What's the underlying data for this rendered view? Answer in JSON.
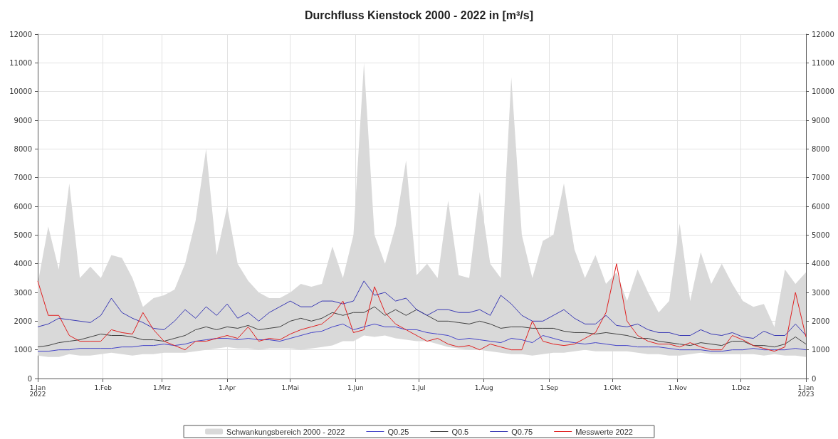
{
  "chart_data": {
    "type": "line",
    "title": "Durchfluss Kienstock 2000 - 2022 in [m³/s]",
    "x": [
      "2022-01-01",
      "2022-01-06",
      "2022-01-11",
      "2022-01-16",
      "2022-01-21",
      "2022-01-26",
      "2022-01-31",
      "2022-02-05",
      "2022-02-10",
      "2022-02-15",
      "2022-02-20",
      "2022-02-25",
      "2022-03-02",
      "2022-03-07",
      "2022-03-12",
      "2022-03-17",
      "2022-03-22",
      "2022-03-27",
      "2022-04-01",
      "2022-04-06",
      "2022-04-11",
      "2022-04-16",
      "2022-04-21",
      "2022-04-26",
      "2022-05-01",
      "2022-05-06",
      "2022-05-11",
      "2022-05-16",
      "2022-05-21",
      "2022-05-26",
      "2022-05-31",
      "2022-06-05",
      "2022-06-10",
      "2022-06-15",
      "2022-06-20",
      "2022-06-25",
      "2022-06-30",
      "2022-07-05",
      "2022-07-10",
      "2022-07-15",
      "2022-07-20",
      "2022-07-25",
      "2022-07-30",
      "2022-08-04",
      "2022-08-09",
      "2022-08-14",
      "2022-08-19",
      "2022-08-24",
      "2022-08-29",
      "2022-09-03",
      "2022-09-08",
      "2022-09-13",
      "2022-09-18",
      "2022-09-23",
      "2022-09-28",
      "2022-10-03",
      "2022-10-08",
      "2022-10-13",
      "2022-10-18",
      "2022-10-23",
      "2022-10-28",
      "2022-11-02",
      "2022-11-07",
      "2022-11-12",
      "2022-11-17",
      "2022-11-22",
      "2022-11-27",
      "2022-12-02",
      "2022-12-07",
      "2022-12-12",
      "2022-12-17",
      "2022-12-22",
      "2022-12-27",
      "2023-01-01"
    ],
    "series": [
      {
        "name": "Schwankungsbereich 2000 - 2022",
        "type": "area",
        "color": "#d9d9d9",
        "values": [
          null,
          null,
          null,
          null,
          null,
          null,
          null,
          null,
          null,
          null,
          null,
          null,
          null,
          null,
          null,
          null,
          null,
          null,
          null,
          null,
          null,
          null,
          null,
          null,
          null,
          null,
          null,
          null,
          null,
          null,
          null,
          null,
          null,
          null,
          null,
          null,
          null,
          null,
          null,
          null,
          null,
          null,
          null,
          null,
          null,
          null,
          null,
          null,
          null,
          null,
          null,
          null,
          null,
          null,
          null,
          null,
          null,
          null,
          null,
          null,
          null,
          null,
          null,
          null,
          null,
          null,
          null,
          null,
          null,
          null,
          null,
          null,
          null,
          null
        ],
        "upper": [
          3300,
          5300,
          3800,
          6800,
          3500,
          3900,
          3500,
          4300,
          4200,
          3500,
          2500,
          2800,
          2900,
          3100,
          4000,
          5500,
          8000,
          4300,
          6000,
          4000,
          3400,
          3000,
          2800,
          2800,
          3000,
          3300,
          3200,
          3300,
          4600,
          3500,
          5000,
          11000,
          5000,
          4000,
          5300,
          7600,
          3600,
          4000,
          3500,
          6200,
          3600,
          3500,
          6500,
          4000,
          3500,
          10500,
          5000,
          3500,
          4800,
          5000,
          6800,
          4500,
          3500,
          4300,
          3300,
          3700,
          2700,
          3800,
          3000,
          2300,
          2700,
          5400,
          2700,
          4400,
          3300,
          4000,
          3300,
          2700,
          2500,
          2600,
          1800,
          3800,
          3300,
          3700
        ],
        "lower": [
          800,
          750,
          750,
          850,
          800,
          800,
          850,
          900,
          850,
          800,
          850,
          850,
          900,
          900,
          900,
          950,
          1000,
          1050,
          1100,
          1050,
          1050,
          1000,
          1050,
          1050,
          1050,
          1000,
          1050,
          1100,
          1150,
          1300,
          1300,
          1500,
          1450,
          1500,
          1400,
          1350,
          1300,
          1300,
          1200,
          1100,
          1050,
          1000,
          1000,
          950,
          900,
          850,
          850,
          800,
          850,
          900,
          900,
          950,
          1000,
          950,
          950,
          950,
          950,
          900,
          850,
          850,
          800,
          800,
          850,
          900,
          850,
          850,
          850,
          850,
          850,
          800,
          850,
          800,
          800,
          750
        ]
      },
      {
        "name": "Q0.25",
        "color": "#4444c8",
        "values": [
          950,
          950,
          1000,
          1000,
          1050,
          1050,
          1050,
          1050,
          1100,
          1100,
          1150,
          1150,
          1200,
          1150,
          1200,
          1300,
          1350,
          1400,
          1400,
          1350,
          1400,
          1350,
          1350,
          1300,
          1400,
          1500,
          1600,
          1650,
          1800,
          1900,
          1700,
          1800,
          1900,
          1800,
          1800,
          1700,
          1700,
          1600,
          1550,
          1500,
          1350,
          1400,
          1350,
          1300,
          1250,
          1400,
          1350,
          1250,
          1500,
          1400,
          1300,
          1250,
          1200,
          1250,
          1200,
          1150,
          1150,
          1100,
          1100,
          1100,
          1050,
          1000,
          1000,
          1000,
          950,
          950,
          1000,
          1000,
          1050,
          1000,
          1000,
          1000,
          1050,
          1000
        ]
      },
      {
        "name": "Q0.5",
        "color": "#404040",
        "values": [
          1100,
          1150,
          1250,
          1300,
          1350,
          1450,
          1550,
          1500,
          1500,
          1450,
          1350,
          1350,
          1300,
          1400,
          1500,
          1700,
          1800,
          1700,
          1800,
          1750,
          1850,
          1700,
          1750,
          1800,
          2000,
          2100,
          2000,
          2100,
          2300,
          2200,
          2300,
          2300,
          2500,
          2200,
          2400,
          2200,
          2400,
          2200,
          2000,
          2000,
          1950,
          1900,
          2000,
          1900,
          1750,
          1800,
          1800,
          1750,
          1750,
          1750,
          1650,
          1600,
          1600,
          1550,
          1600,
          1550,
          1500,
          1400,
          1400,
          1300,
          1250,
          1200,
          1150,
          1250,
          1200,
          1150,
          1300,
          1300,
          1150,
          1150,
          1100,
          1200,
          1450,
          1200
        ]
      },
      {
        "name": "Q0.75",
        "color": "#3a3ab4",
        "values": [
          1800,
          1900,
          2100,
          2050,
          2000,
          1950,
          2200,
          2800,
          2300,
          2100,
          1950,
          1750,
          1700,
          2000,
          2400,
          2100,
          2500,
          2200,
          2600,
          2100,
          2300,
          2000,
          2300,
          2500,
          2700,
          2500,
          2500,
          2700,
          2700,
          2600,
          2700,
          3400,
          2900,
          3000,
          2700,
          2800,
          2400,
          2200,
          2400,
          2400,
          2300,
          2300,
          2400,
          2200,
          2900,
          2600,
          2200,
          2000,
          2000,
          2200,
          2400,
          2100,
          1900,
          1900,
          2200,
          1850,
          1800,
          1900,
          1700,
          1600,
          1600,
          1500,
          1500,
          1700,
          1550,
          1500,
          1600,
          1450,
          1400,
          1650,
          1500,
          1500,
          1900,
          1500
        ]
      },
      {
        "name": "Messwerte 2022",
        "color": "#e02020",
        "values": [
          3400,
          2200,
          2200,
          1500,
          1300,
          1300,
          1300,
          1700,
          1600,
          1550,
          2300,
          1700,
          1300,
          1150,
          1000,
          1300,
          1300,
          1400,
          1500,
          1400,
          1800,
          1300,
          1400,
          1350,
          1550,
          1700,
          1800,
          1900,
          2200,
          2700,
          1600,
          1700,
          3200,
          2300,
          1900,
          1700,
          1500,
          1300,
          1400,
          1200,
          1100,
          1150,
          1000,
          1200,
          1100,
          1000,
          1000,
          2000,
          1300,
          1200,
          1150,
          1200,
          1400,
          1600,
          2300,
          4000,
          2000,
          1500,
          1300,
          1200,
          1200,
          1100,
          1250,
          1100,
          1000,
          1000,
          1500,
          1350,
          1150,
          1050,
          950,
          1100,
          3000,
          1450
        ]
      }
    ],
    "ylim": [
      0,
      12000
    ],
    "yticks": [
      0,
      1000,
      2000,
      3000,
      4000,
      5000,
      6000,
      7000,
      8000,
      9000,
      10000,
      11000,
      12000
    ],
    "y2lim": [
      0,
      12000
    ],
    "y2ticks": [
      0,
      1000,
      2000,
      3000,
      4000,
      5000,
      6000,
      7000,
      8000,
      9000,
      10000,
      11000,
      12000
    ],
    "xlim": [
      "2022-01-01",
      "2023-01-01"
    ],
    "xticks": [
      {
        "value": "2022-01-01",
        "label": "1.Jan\n2022"
      },
      {
        "value": "2022-02-01",
        "label": "1.Feb"
      },
      {
        "value": "2022-03-01",
        "label": "1.Mrz"
      },
      {
        "value": "2022-04-01",
        "label": "1.Apr"
      },
      {
        "value": "2022-05-01",
        "label": "1.Mai"
      },
      {
        "value": "2022-06-01",
        "label": "1.Jun"
      },
      {
        "value": "2022-07-01",
        "label": "1.Jul"
      },
      {
        "value": "2022-08-01",
        "label": "1.Aug"
      },
      {
        "value": "2022-09-01",
        "label": "1.Sep"
      },
      {
        "value": "2022-10-01",
        "label": "1.Okt"
      },
      {
        "value": "2022-11-01",
        "label": "1.Nov"
      },
      {
        "value": "2022-12-01",
        "label": "1.Dez"
      },
      {
        "value": "2023-01-01",
        "label": "1.Jan\n2023"
      }
    ],
    "grid": true,
    "legend": "bottom",
    "marker": "none",
    "line_style": "solid"
  }
}
